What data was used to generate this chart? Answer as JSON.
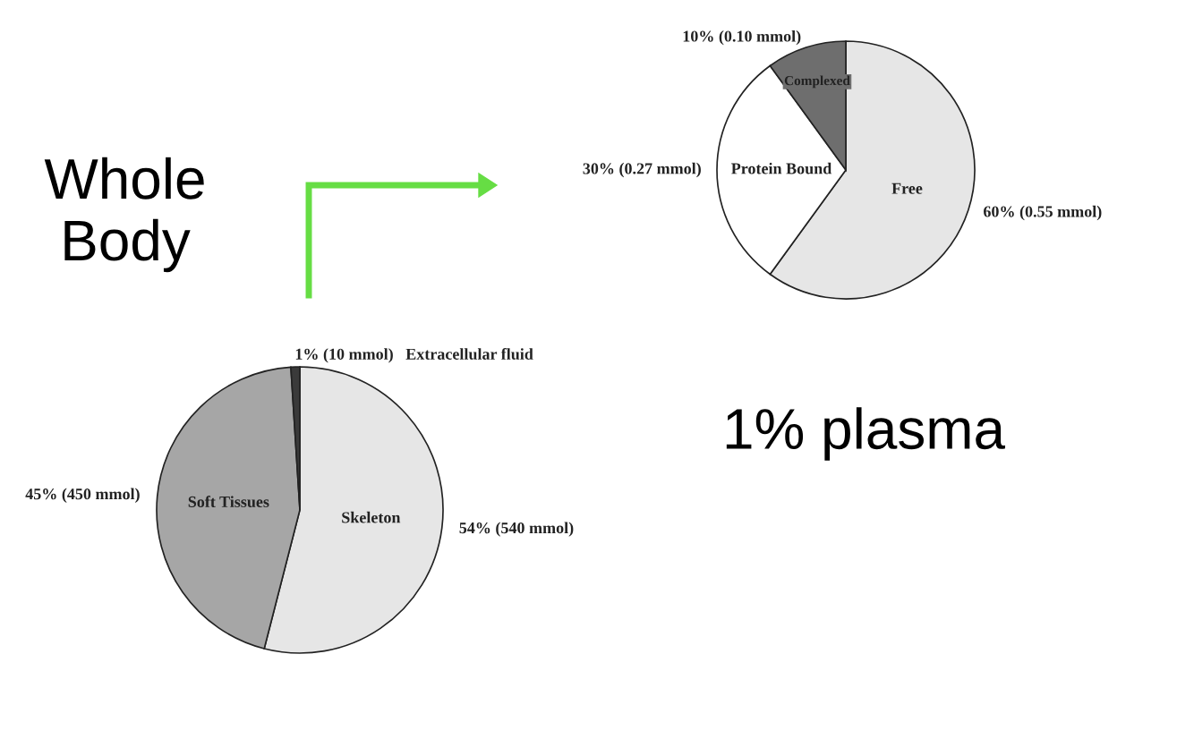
{
  "chart_data": [
    {
      "type": "pie",
      "title": "Whole Body",
      "categories": [
        "Skeleton",
        "Soft Tissues",
        "Extracellular fluid"
      ],
      "values": [
        54,
        45,
        1
      ],
      "value_labels": [
        "54% (540 mmol)",
        "45% (450 mmol)",
        "1% (10 mmol)"
      ],
      "colors": [
        "#e6e6e6",
        "#a6a6a6",
        "#3a3a3a"
      ]
    },
    {
      "type": "pie",
      "title": "1% plasma",
      "categories": [
        "Free",
        "Protein Bound",
        "Complexed"
      ],
      "values": [
        60,
        30,
        10
      ],
      "value_labels": [
        "60% (0.55 mmol)",
        "30% (0.27 mmol)",
        "10% (0.10 mmol)"
      ],
      "colors": [
        "#e6e6e6",
        "#ffffff",
        "#6e6e6e"
      ]
    }
  ]
}
